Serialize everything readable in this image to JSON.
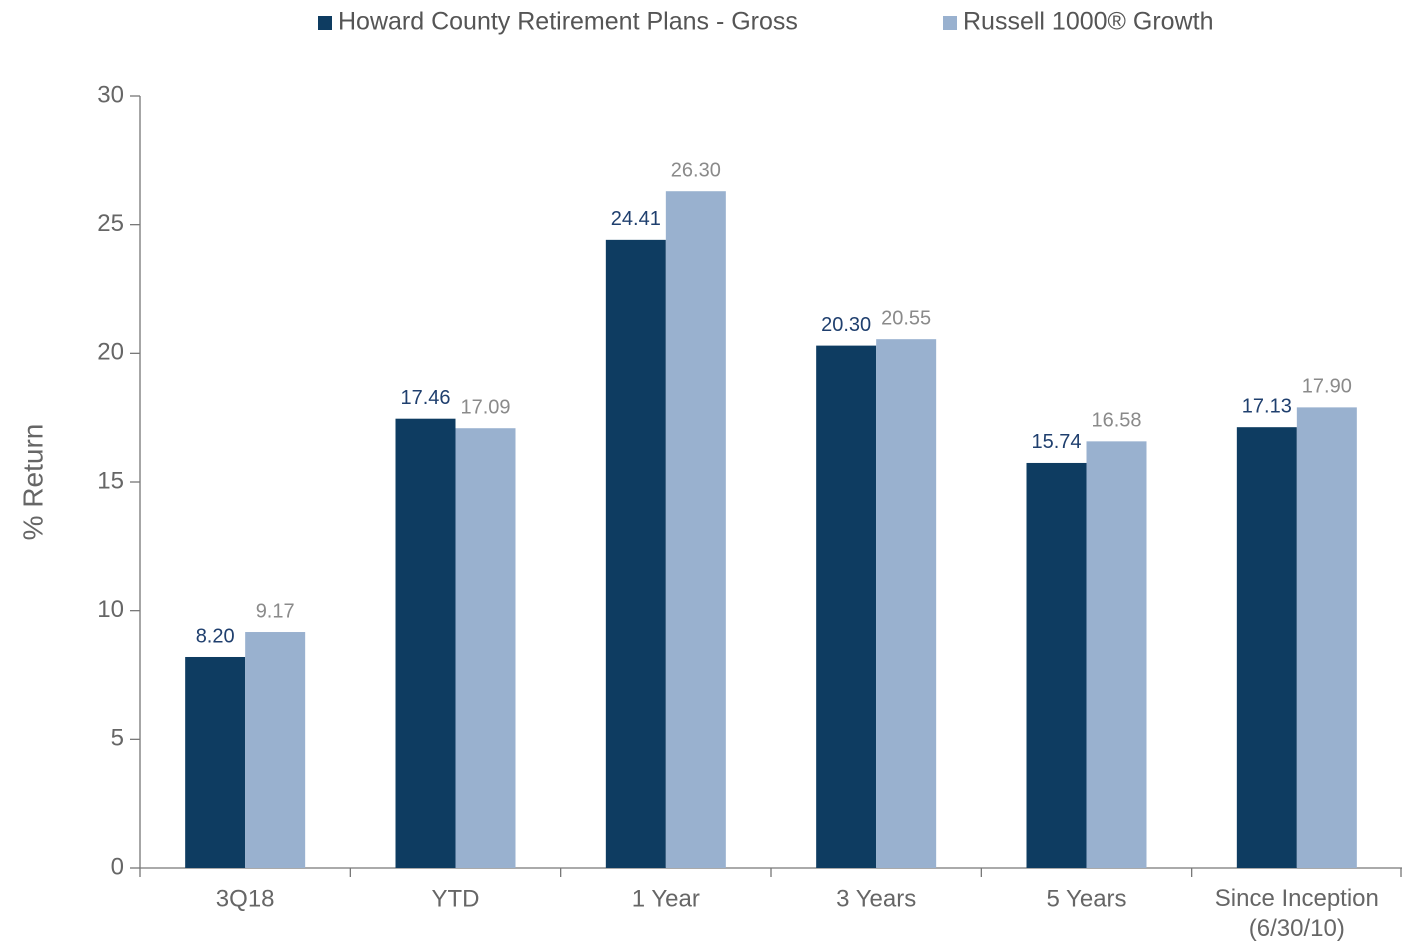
{
  "chart_data": {
    "type": "bar",
    "y_label": "% Return",
    "categories": [
      "3Q18",
      "YTD",
      "1 Year",
      "3 Years",
      "5 Years",
      "Since Inception\n(6/30/10)"
    ],
    "series": [
      {
        "name": "Howard County Retirement Plans - Gross",
        "color": "#0e3c61",
        "label_color": "#1f3f6e",
        "values": [
          8.2,
          17.46,
          24.41,
          20.3,
          15.74,
          17.13
        ],
        "value_labels": [
          "8.20",
          "17.46",
          "24.41",
          "20.30",
          "15.74",
          "17.13"
        ]
      },
      {
        "name": "Russell 1000® Growth",
        "color": "#99b1cf",
        "label_color": "#8a8a8a",
        "values": [
          9.17,
          17.09,
          26.3,
          20.55,
          16.58,
          17.9
        ],
        "value_labels": [
          "9.17",
          "17.09",
          "26.30",
          "20.55",
          "16.58",
          "17.90"
        ]
      }
    ],
    "ylim": [
      0,
      30
    ],
    "yticks": [
      0,
      5,
      10,
      15,
      20,
      25,
      30
    ],
    "grid": false,
    "legend": "top"
  }
}
